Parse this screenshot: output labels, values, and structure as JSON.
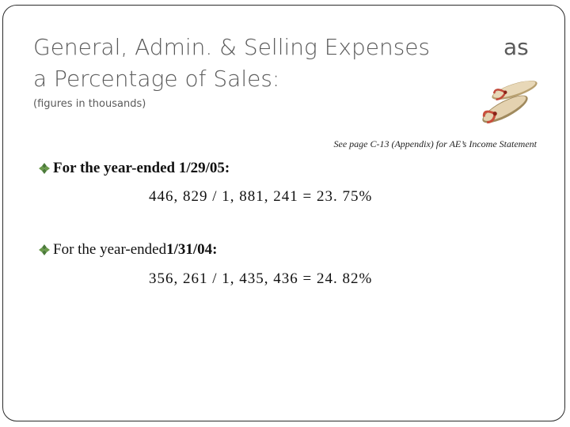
{
  "slide": {
    "title": "General, Admin. & Selling Expenses a Percentage of Sales:",
    "title_line1": "General, Admin. & Selling Expenses",
    "title_as": "as",
    "title_line2": "a Percentage of Sales:",
    "subtitle": "(figures in thousands)",
    "note": "See page C-13 (Appendix) for AE’s Income Statement",
    "image_icon": "flip-flops-icon",
    "bullet_icon": "diamond-bullet-icon",
    "accent_color": "#4a7a3a",
    "items": [
      {
        "label": "For the year-ended 1/29/05:",
        "calculation": "446, 829 / 1, 881, 241 = 23. 75%"
      },
      {
        "label_prefix": "For the year-ended ",
        "label_date": "1/31/04:",
        "calculation": "356, 261 / 1, 435, 436 = 24. 82%"
      }
    ]
  }
}
